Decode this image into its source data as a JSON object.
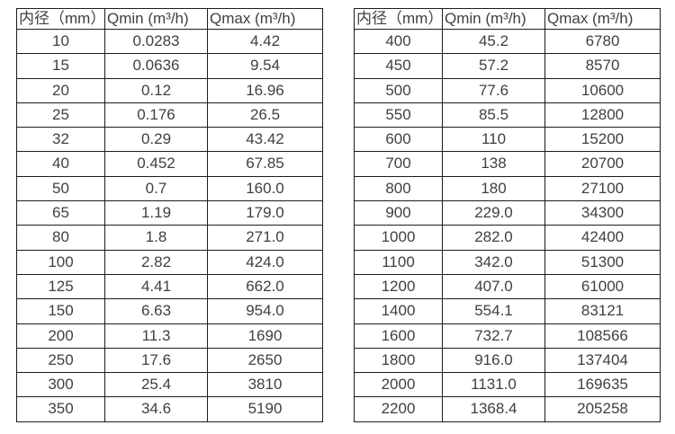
{
  "colors": {
    "background": "#ffffff",
    "border": "#1c1c1c",
    "text": "#404040"
  },
  "tables": [
    {
      "name": "flow-table-small-diameters",
      "headers": [
        "内径（mm）",
        "Qmin (m³/h)",
        "Qmax (m³/h)"
      ],
      "rows": [
        [
          "10",
          "0.0283",
          "4.42"
        ],
        [
          "15",
          "0.0636",
          "9.54"
        ],
        [
          "20",
          "0.12",
          "16.96"
        ],
        [
          "25",
          "0.176",
          "26.5"
        ],
        [
          "32",
          "0.29",
          "43.42"
        ],
        [
          "40",
          "0.452",
          "67.85"
        ],
        [
          "50",
          "0.7",
          "160.0"
        ],
        [
          "65",
          "1.19",
          "179.0"
        ],
        [
          "80",
          "1.8",
          "271.0"
        ],
        [
          "100",
          "2.82",
          "424.0"
        ],
        [
          "125",
          "4.41",
          "662.0"
        ],
        [
          "150",
          "6.63",
          "954.0"
        ],
        [
          "200",
          "11.3",
          "1690"
        ],
        [
          "250",
          "17.6",
          "2650"
        ],
        [
          "300",
          "25.4",
          "3810"
        ],
        [
          "350",
          "34.6",
          "5190"
        ]
      ]
    },
    {
      "name": "flow-table-large-diameters",
      "headers": [
        "内径（mm）",
        "Qmin (m³/h)",
        "Qmax (m³/h)"
      ],
      "rows": [
        [
          "400",
          "45.2",
          "6780"
        ],
        [
          "450",
          "57.2",
          "8570"
        ],
        [
          "500",
          "77.6",
          "10600"
        ],
        [
          "550",
          "85.5",
          "12800"
        ],
        [
          "600",
          "110",
          "15200"
        ],
        [
          "700",
          "138",
          "20700"
        ],
        [
          "800",
          "180",
          "27100"
        ],
        [
          "900",
          "229.0",
          "34300"
        ],
        [
          "1000",
          "282.0",
          "42400"
        ],
        [
          "1100",
          "342.0",
          "51300"
        ],
        [
          "1200",
          "407.0",
          "61000"
        ],
        [
          "1400",
          "554.1",
          "83121"
        ],
        [
          "1600",
          "732.7",
          "108566"
        ],
        [
          "1800",
          "916.0",
          "137404"
        ],
        [
          "2000",
          "1131.0",
          "169635"
        ],
        [
          "2200",
          "1368.4",
          "205258"
        ]
      ]
    }
  ]
}
